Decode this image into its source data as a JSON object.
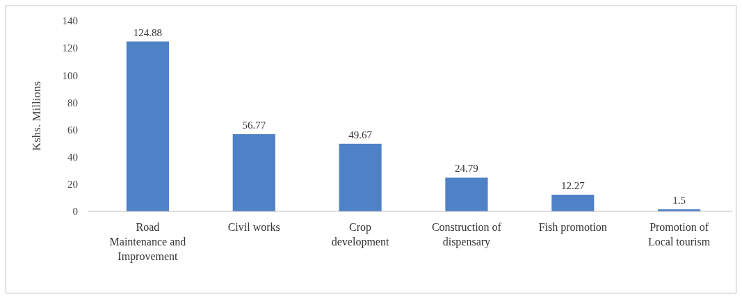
{
  "chart_data": {
    "type": "bar",
    "ylabel": "Kshs. Millions",
    "categories": [
      "Road Maintenance and Improvement",
      "Civil works",
      "Crop development",
      "Construction of dispensary",
      "Fish promotion",
      "Promotion of Local tourism"
    ],
    "values": [
      124.88,
      56.77,
      49.67,
      24.79,
      12.27,
      1.5
    ],
    "color": "#4f81c7",
    "ylim": [
      0,
      140
    ],
    "yticks": [
      0,
      20,
      40,
      60,
      80,
      100,
      120,
      140
    ],
    "data_labels": true
  }
}
